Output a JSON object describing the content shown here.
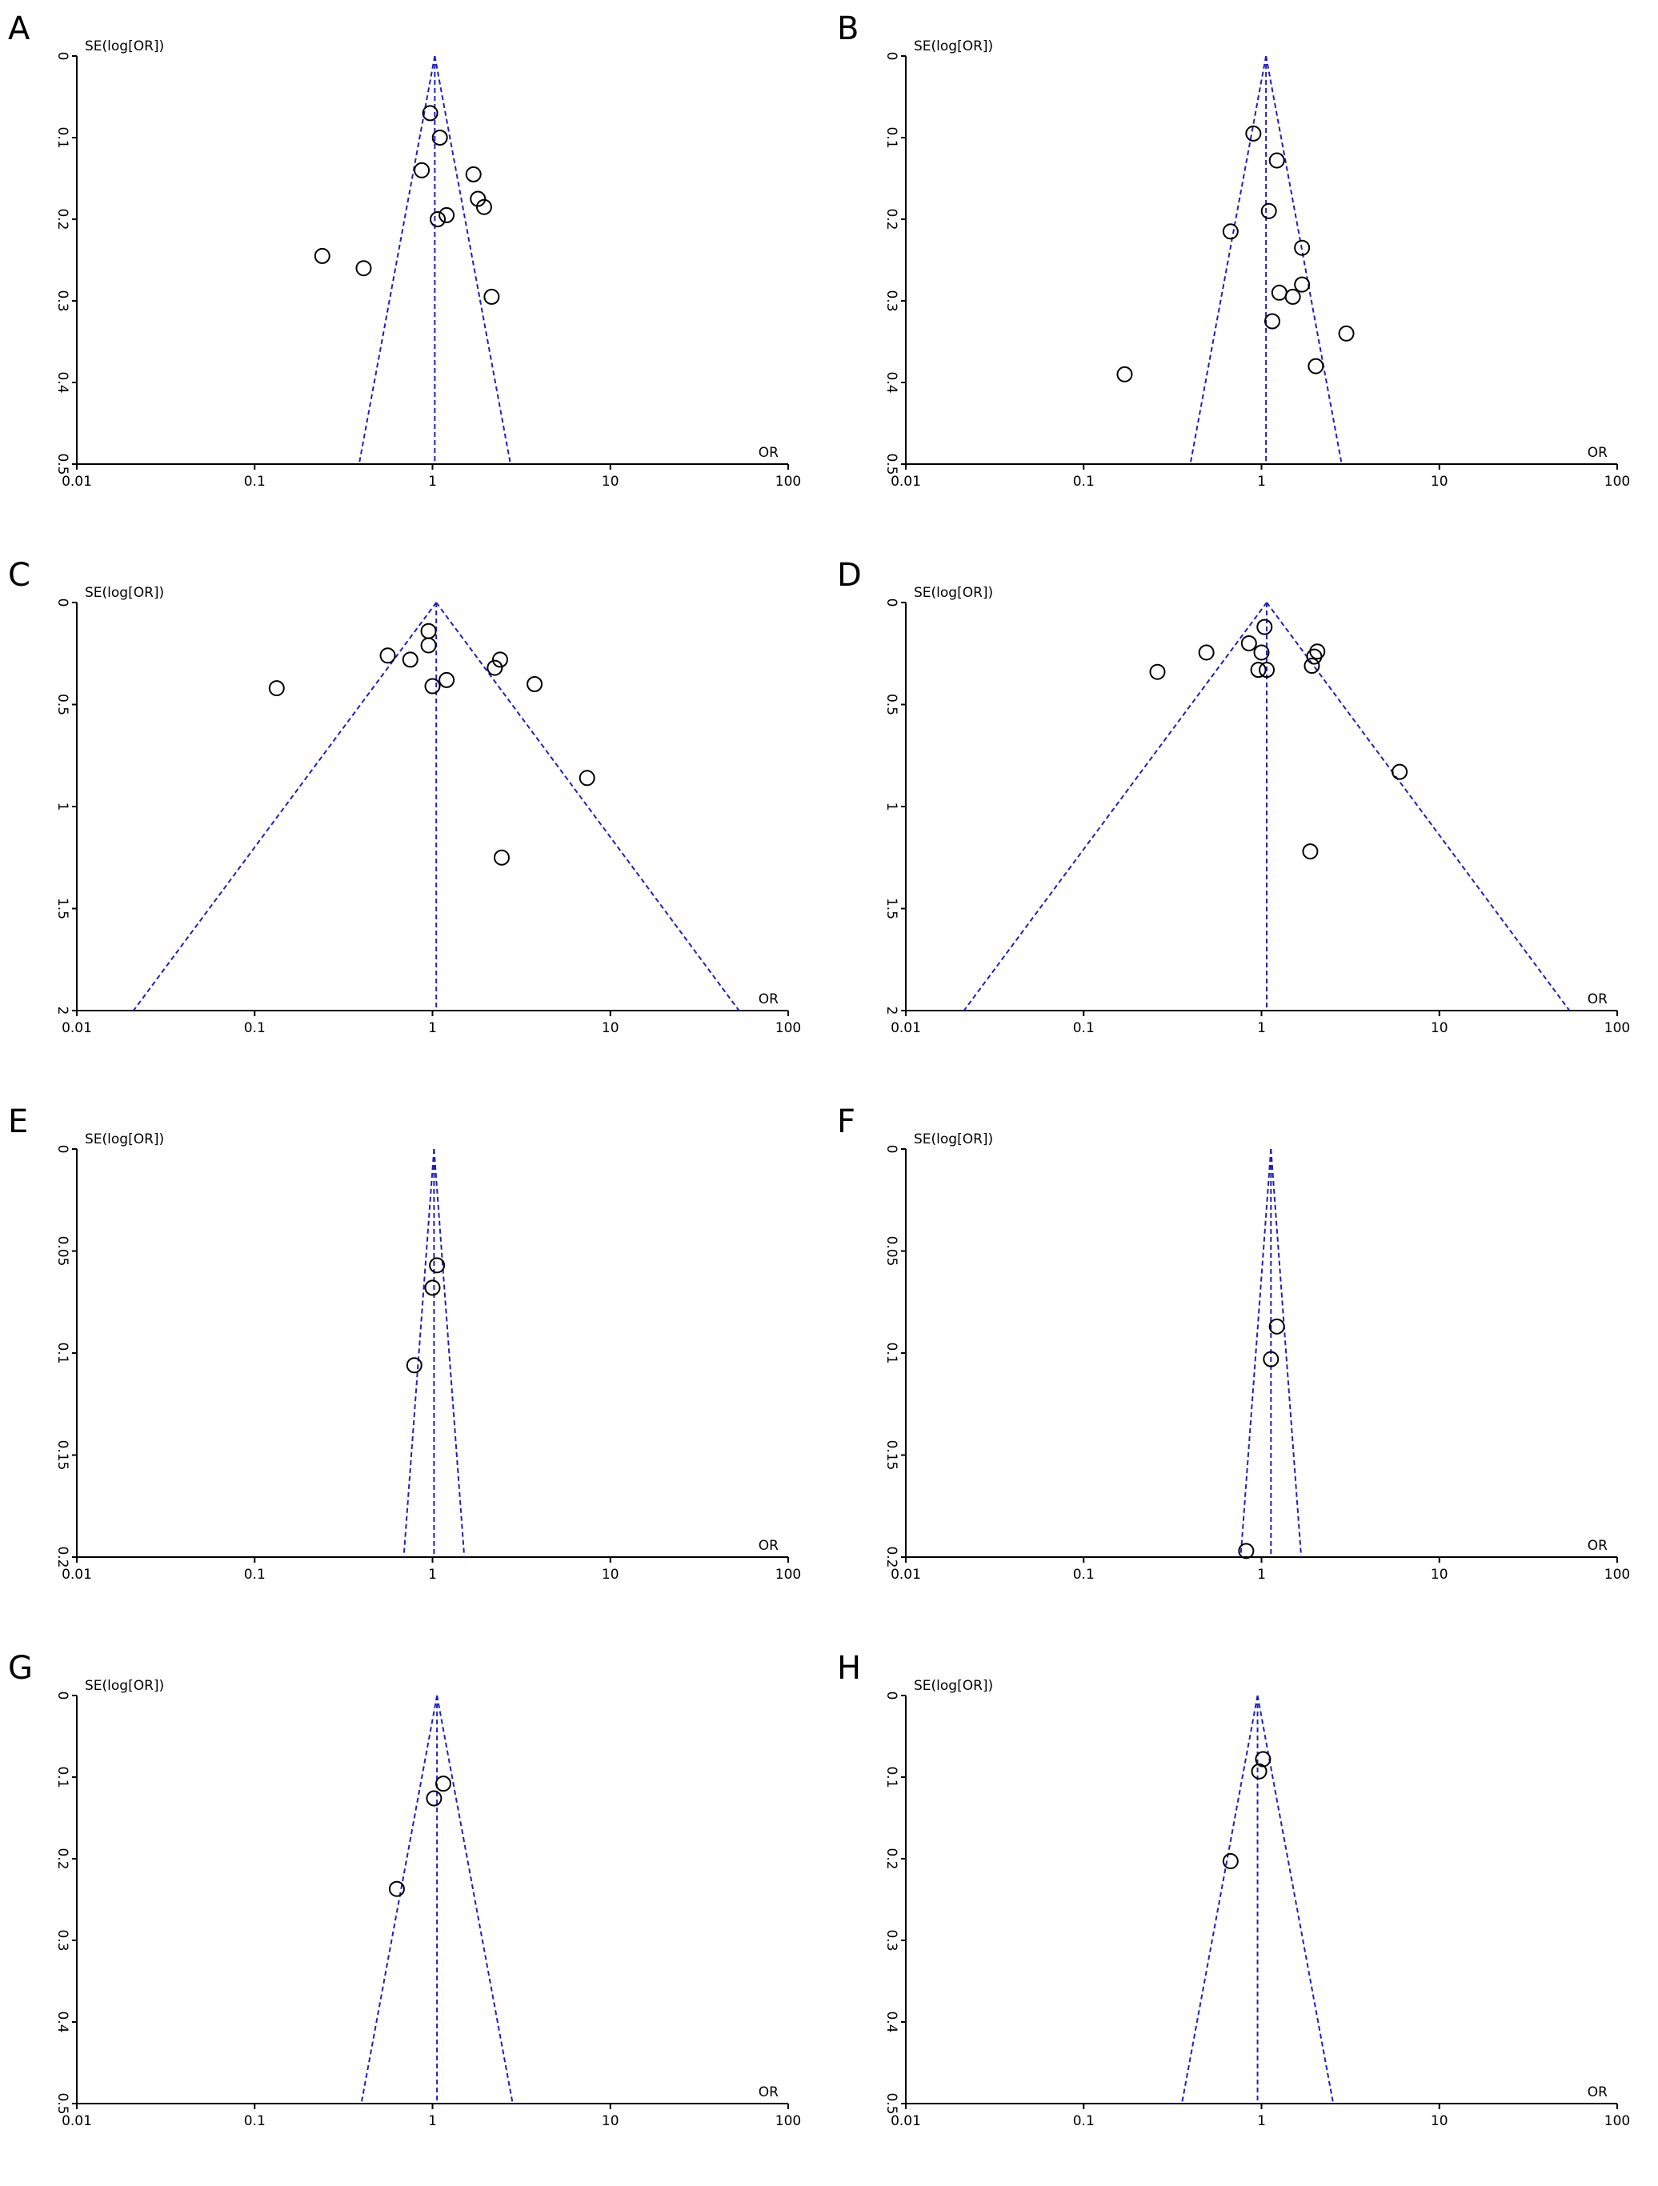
{
  "chart_data": [
    {
      "type": "scatter",
      "panel_label": "A",
      "y_label": "SE(log[OR])",
      "x_label": "OR",
      "x_scale": "log",
      "y_inverted": true,
      "xlim": [
        0.01,
        100
      ],
      "xticks": [
        0.01,
        0.1,
        1,
        10,
        100
      ],
      "ylim": [
        0,
        0.5
      ],
      "yticks": [
        0,
        0.1,
        0.2,
        0.3,
        0.4,
        0.5
      ],
      "pooled_or": 1.03,
      "funnel_color": "#1f1fbf",
      "point_color": "#000000",
      "x": [
        0.97,
        1.1,
        0.87,
        1.7,
        1.8,
        1.95,
        1.2,
        1.07,
        0.24,
        0.41,
        2.15
      ],
      "values": [
        0.07,
        0.1,
        0.14,
        0.145,
        0.175,
        0.185,
        0.195,
        0.2,
        0.245,
        0.26,
        0.295
      ]
    },
    {
      "type": "scatter",
      "panel_label": "B",
      "y_label": "SE(log[OR])",
      "x_label": "OR",
      "x_scale": "log",
      "y_inverted": true,
      "xlim": [
        0.01,
        100
      ],
      "xticks": [
        0.01,
        0.1,
        1,
        10,
        100
      ],
      "ylim": [
        0,
        0.5
      ],
      "yticks": [
        0,
        0.1,
        0.2,
        0.3,
        0.4,
        0.5
      ],
      "pooled_or": 1.06,
      "funnel_color": "#1f1fbf",
      "point_color": "#000000",
      "x": [
        0.9,
        1.22,
        1.1,
        0.67,
        1.69,
        1.69,
        1.5,
        1.26,
        1.15,
        3.0,
        2.02,
        0.17
      ],
      "values": [
        0.095,
        0.128,
        0.19,
        0.215,
        0.235,
        0.28,
        0.295,
        0.29,
        0.325,
        0.34,
        0.38,
        0.39
      ]
    },
    {
      "type": "scatter",
      "panel_label": "C",
      "y_label": "SE(log[OR])",
      "x_label": "OR",
      "x_scale": "log",
      "y_inverted": true,
      "xlim": [
        0.01,
        100
      ],
      "xticks": [
        0.01,
        0.1,
        1,
        10,
        100
      ],
      "ylim": [
        0,
        2
      ],
      "yticks": [
        0,
        0.5,
        1,
        1.5,
        2
      ],
      "pooled_or": 1.05,
      "funnel_color": "#1f1fbf",
      "point_color": "#000000",
      "x": [
        0.95,
        0.95,
        0.56,
        0.75,
        2.4,
        2.24,
        1.2,
        1.0,
        3.75,
        0.133,
        7.4,
        2.45
      ],
      "values": [
        0.14,
        0.21,
        0.26,
        0.28,
        0.28,
        0.32,
        0.38,
        0.41,
        0.4,
        0.42,
        0.86,
        1.25
      ]
    },
    {
      "type": "scatter",
      "panel_label": "D",
      "y_label": "SE(log[OR])",
      "x_label": "OR",
      "x_scale": "log",
      "y_inverted": true,
      "xlim": [
        0.01,
        100
      ],
      "xticks": [
        0.01,
        0.1,
        1,
        10,
        100
      ],
      "ylim": [
        0,
        2
      ],
      "yticks": [
        0,
        0.5,
        1,
        1.5,
        2
      ],
      "pooled_or": 1.07,
      "funnel_color": "#1f1fbf",
      "point_color": "#000000",
      "x": [
        1.04,
        0.85,
        0.49,
        1.0,
        2.06,
        1.98,
        1.92,
        0.96,
        1.07,
        0.26,
        5.98,
        1.88
      ],
      "values": [
        0.12,
        0.2,
        0.245,
        0.245,
        0.24,
        0.265,
        0.31,
        0.33,
        0.33,
        0.34,
        0.83,
        1.22
      ]
    },
    {
      "type": "scatter",
      "panel_label": "E",
      "y_label": "SE(log[OR])",
      "x_label": "OR",
      "x_scale": "log",
      "y_inverted": true,
      "xlim": [
        0.01,
        100
      ],
      "xticks": [
        0.01,
        0.1,
        1,
        10,
        100
      ],
      "ylim": [
        0,
        0.2
      ],
      "yticks": [
        0,
        0.05,
        0.1,
        0.15,
        0.2
      ],
      "pooled_or": 1.02,
      "funnel_color": "#1f1fbf",
      "point_color": "#000000",
      "x": [
        1.06,
        1.0,
        0.79
      ],
      "values": [
        0.057,
        0.068,
        0.106
      ]
    },
    {
      "type": "scatter",
      "panel_label": "F",
      "y_label": "SE(log[OR])",
      "x_label": "OR",
      "x_scale": "log",
      "y_inverted": true,
      "xlim": [
        0.01,
        100
      ],
      "xticks": [
        0.01,
        0.1,
        1,
        10,
        100
      ],
      "ylim": [
        0,
        0.2
      ],
      "yticks": [
        0,
        0.05,
        0.1,
        0.15,
        0.2
      ],
      "pooled_or": 1.13,
      "funnel_color": "#1f1fbf",
      "point_color": "#000000",
      "x": [
        1.22,
        1.13,
        0.82
      ],
      "values": [
        0.087,
        0.103,
        0.197
      ]
    },
    {
      "type": "scatter",
      "panel_label": "G",
      "y_label": "SE(log[OR])",
      "x_label": "OR",
      "x_scale": "log",
      "y_inverted": true,
      "xlim": [
        0.01,
        100
      ],
      "xticks": [
        0.01,
        0.1,
        1,
        10,
        100
      ],
      "ylim": [
        0,
        0.5
      ],
      "yticks": [
        0,
        0.1,
        0.2,
        0.3,
        0.4,
        0.5
      ],
      "pooled_or": 1.06,
      "funnel_color": "#1f1fbf",
      "point_color": "#000000",
      "x": [
        1.15,
        1.02,
        0.63
      ],
      "values": [
        0.108,
        0.126,
        0.237
      ]
    },
    {
      "type": "scatter",
      "panel_label": "H",
      "y_label": "SE(log[OR])",
      "x_label": "OR",
      "x_scale": "log",
      "y_inverted": true,
      "xlim": [
        0.01,
        100
      ],
      "xticks": [
        0.01,
        0.1,
        1,
        10,
        100
      ],
      "ylim": [
        0,
        0.5
      ],
      "yticks": [
        0,
        0.1,
        0.2,
        0.3,
        0.4,
        0.5
      ],
      "pooled_or": 0.95,
      "funnel_color": "#1f1fbf",
      "point_color": "#000000",
      "x": [
        1.02,
        0.97,
        0.67
      ],
      "values": [
        0.078,
        0.093,
        0.203
      ]
    }
  ]
}
